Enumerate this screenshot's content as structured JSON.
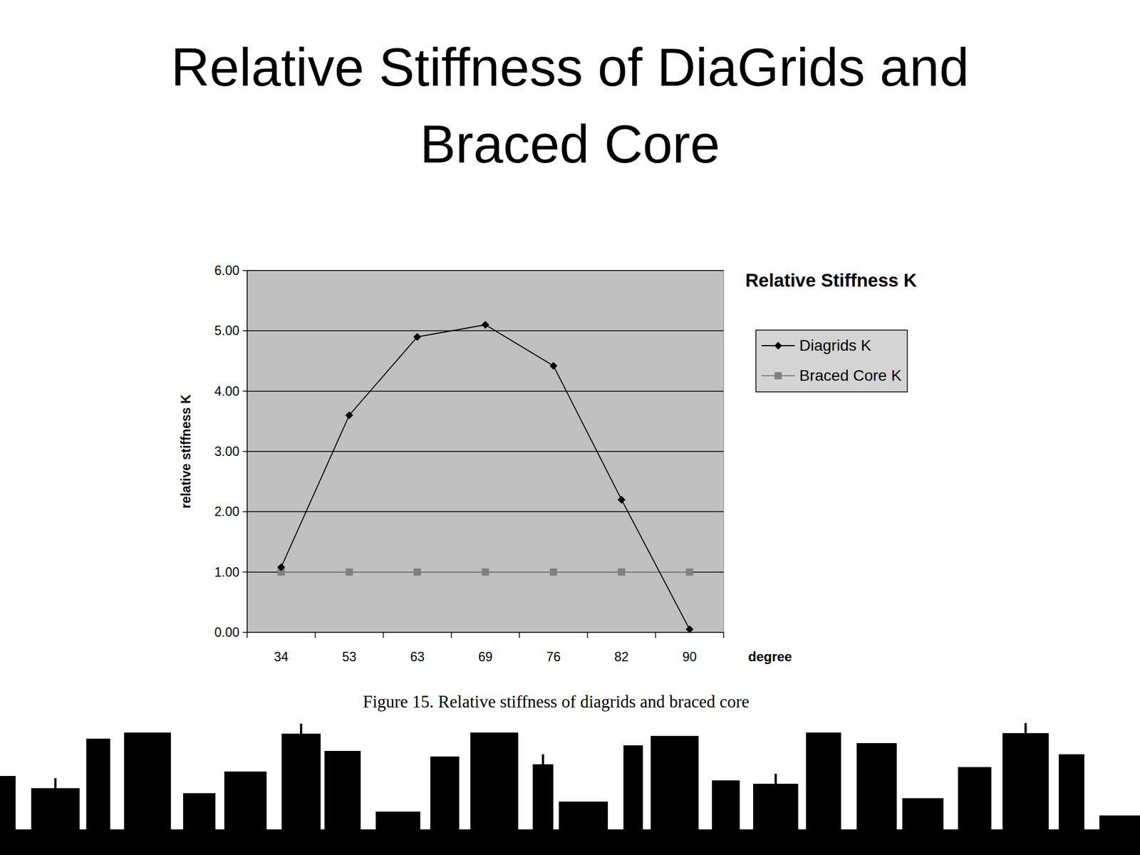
{
  "page": {
    "title": "Relative Stiffness of DiaGrids and Braced Core",
    "caption": "Figure 15.  Relative stiffness of diagrids and braced core"
  },
  "chart_data": {
    "type": "line",
    "title": "Relative Stiffness K",
    "x_label": "degree",
    "y_label": "relative stiffness K",
    "categories": [
      "34",
      "53",
      "63",
      "69",
      "76",
      "82",
      "90"
    ],
    "series": [
      {
        "name": "Diagrids K",
        "color": "#000000",
        "marker": "diamond",
        "values": [
          1.08,
          3.6,
          4.9,
          5.1,
          4.42,
          2.2,
          0.05
        ]
      },
      {
        "name": "Braced Core K",
        "color": "#808080",
        "marker": "square",
        "values": [
          1.0,
          1.0,
          1.0,
          1.0,
          1.0,
          1.0,
          1.0
        ]
      }
    ],
    "ylim": [
      0,
      6
    ],
    "yticks": [
      {
        "value": 0,
        "label": "0.00"
      },
      {
        "value": 1,
        "label": "1.00"
      },
      {
        "value": 2,
        "label": "2.00"
      },
      {
        "value": 3,
        "label": "3.00"
      },
      {
        "value": 4,
        "label": "4.00"
      },
      {
        "value": 5,
        "label": "5.00"
      },
      {
        "value": 6,
        "label": "6.00"
      }
    ],
    "grid": true,
    "legend": "right"
  }
}
